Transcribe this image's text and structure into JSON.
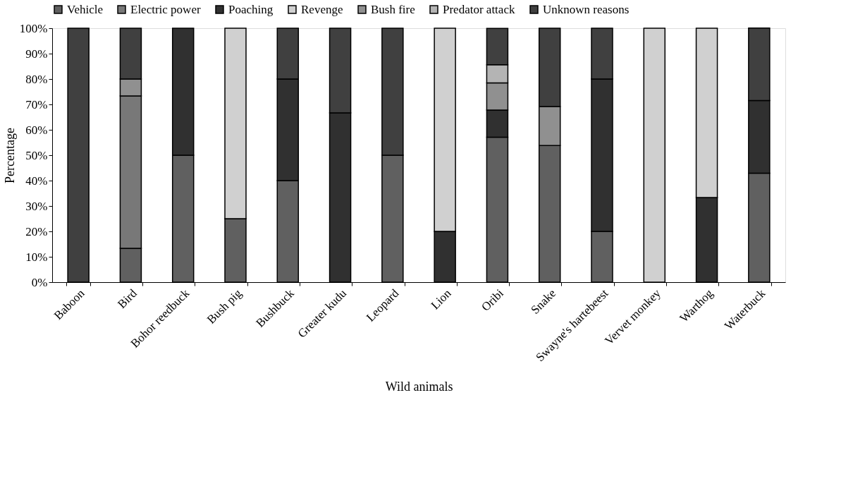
{
  "chart_data": {
    "type": "bar",
    "stacked": true,
    "xlabel": "Wild animals",
    "ylabel": "Percentage",
    "categories": [
      "Baboon",
      "Bird",
      "Bohor reedbuck",
      "Bush pig",
      "Bushbuck",
      "Greater kudu",
      "Leopard",
      "Lion",
      "Oribi",
      "Snake",
      "Swayne's hartebeest",
      "Vervet monkey",
      "Warthog",
      "Waterbuck"
    ],
    "series": [
      {
        "name": "Vehicle",
        "color": "#606060",
        "values": [
          0,
          13.3,
          50,
          25,
          40,
          0,
          50,
          0,
          57.1,
          53.8,
          20,
          0,
          0,
          42.9
        ]
      },
      {
        "name": "Electric power",
        "color": "#787878",
        "values": [
          0,
          60,
          0,
          0,
          0,
          0,
          0,
          0,
          0,
          0,
          0,
          0,
          0,
          0
        ]
      },
      {
        "name": "Poaching",
        "color": "#303030",
        "values": [
          0,
          0,
          50,
          0,
          40,
          66.7,
          0,
          20,
          10.7,
          0,
          60,
          0,
          33.3,
          28.6
        ]
      },
      {
        "name": "Revenge",
        "color": "#d0d0d0",
        "values": [
          0,
          0,
          0,
          75,
          0,
          0,
          0,
          80,
          0,
          0,
          0,
          100,
          66.7,
          0
        ]
      },
      {
        "name": "Bush fire",
        "color": "#909090",
        "values": [
          0,
          6.7,
          0,
          0,
          0,
          0,
          0,
          0,
          10.7,
          15.4,
          0,
          0,
          0,
          0
        ]
      },
      {
        "name": "Predator attack",
        "color": "#b4b4b4",
        "values": [
          0,
          0,
          0,
          0,
          0,
          0,
          0,
          0,
          7.1,
          0,
          0,
          0,
          0,
          0
        ]
      },
      {
        "name": "Unknown reasons",
        "color": "#404040",
        "values": [
          100,
          20,
          0,
          0,
          20,
          33.3,
          50,
          0,
          14.3,
          30.8,
          20,
          0,
          0,
          28.6
        ]
      }
    ],
    "ylim": [
      0,
      100
    ],
    "yticks": [
      {
        "value": 0,
        "label": "0%"
      },
      {
        "value": 10,
        "label": "10%"
      },
      {
        "value": 20,
        "label": "20%"
      },
      {
        "value": 30,
        "label": "30%"
      },
      {
        "value": 40,
        "label": "40%"
      },
      {
        "value": 50,
        "label": "50%"
      },
      {
        "value": 60,
        "label": "60%"
      },
      {
        "value": 70,
        "label": "70%"
      },
      {
        "value": 80,
        "label": "80%"
      },
      {
        "value": 90,
        "label": "90%"
      },
      {
        "value": 100,
        "label": "100%"
      }
    ],
    "grid": false,
    "legend": "top"
  }
}
